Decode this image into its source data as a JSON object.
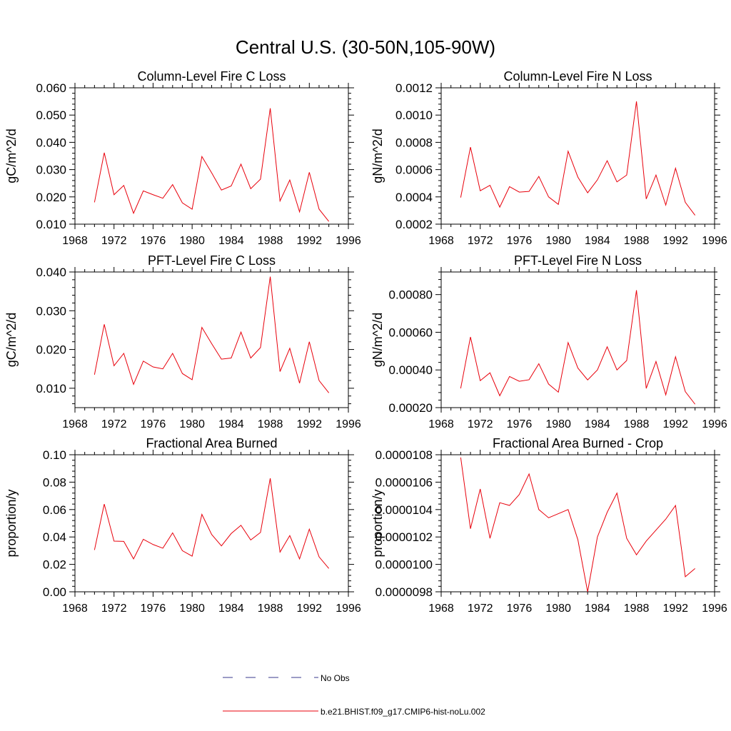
{
  "figure": {
    "title": "Central U.S. (30-50N,105-90W)",
    "legend": {
      "position": "bottom-center",
      "entries": [
        {
          "label": "No Obs",
          "color": "#3a3a8c",
          "style": "dashed"
        },
        {
          "label": "b.e21.BHIST.f09_g17.CMIP6-hist-noLu.002",
          "color": "#e8000b",
          "style": "solid"
        }
      ]
    }
  },
  "chart_data": [
    {
      "type": "line",
      "title": "Column-Level Fire C Loss",
      "ylabel": "gC/m^2/d",
      "xlabel": "",
      "xlim": [
        1968,
        1996
      ],
      "xticks": [
        1968,
        1972,
        1976,
        1980,
        1984,
        1988,
        1992,
        1996
      ],
      "xtick_labels": [
        "1968",
        "1972",
        "1976",
        "1980",
        "1984",
        "1988",
        "1992",
        "1996"
      ],
      "ylim": [
        0.01,
        0.06
      ],
      "yticks": [
        0.01,
        0.02,
        0.03,
        0.04,
        0.05,
        0.06
      ],
      "ytick_labels": [
        "0.010",
        "0.020",
        "0.030",
        "0.040",
        "0.050",
        "0.060"
      ],
      "grid": false,
      "x": [
        1970,
        1971,
        1972,
        1973,
        1974,
        1975,
        1976,
        1977,
        1978,
        1979,
        1980,
        1981,
        1982,
        1983,
        1984,
        1985,
        1986,
        1987,
        1988,
        1989,
        1990,
        1991,
        1992,
        1993,
        1994
      ],
      "series": [
        {
          "name": "b.e21.BHIST.f09_g17.CMIP6-hist-noLu.002",
          "color": "#e8000b",
          "values": [
            0.018,
            0.0362,
            0.0208,
            0.0242,
            0.014,
            0.0222,
            0.0208,
            0.0195,
            0.0245,
            0.0178,
            0.0155,
            0.0348,
            0.0288,
            0.0225,
            0.024,
            0.032,
            0.023,
            0.0265,
            0.0525,
            0.0185,
            0.0262,
            0.0145,
            0.029,
            0.0155,
            0.011
          ]
        }
      ]
    },
    {
      "type": "line",
      "title": "Column-Level Fire N Loss",
      "ylabel": "gN/m^2/d",
      "xlabel": "",
      "xlim": [
        1968,
        1996
      ],
      "xticks": [
        1968,
        1972,
        1976,
        1980,
        1984,
        1988,
        1992,
        1996
      ],
      "xtick_labels": [
        "1968",
        "1972",
        "1976",
        "1980",
        "1984",
        "1988",
        "1992",
        "1996"
      ],
      "ylim": [
        0.0002,
        0.0012
      ],
      "yticks": [
        0.0002,
        0.0004,
        0.0006,
        0.0008,
        0.001,
        0.0012
      ],
      "ytick_labels": [
        "0.0002",
        "0.0004",
        "0.0006",
        "0.0008",
        "0.0010",
        "0.0012"
      ],
      "grid": false,
      "x": [
        1970,
        1971,
        1972,
        1973,
        1974,
        1975,
        1976,
        1977,
        1978,
        1979,
        1980,
        1981,
        1982,
        1983,
        1984,
        1985,
        1986,
        1987,
        1988,
        1989,
        1990,
        1991,
        1992,
        1993,
        1994
      ],
      "series": [
        {
          "name": "b.e21.BHIST.f09_g17.CMIP6-hist-noLu.002",
          "color": "#e8000b",
          "values": [
            0.000395,
            0.000765,
            0.000445,
            0.000485,
            0.000325,
            0.000475,
            0.000435,
            0.00044,
            0.00055,
            0.0004,
            0.000345,
            0.000735,
            0.000545,
            0.00043,
            0.000525,
            0.000665,
            0.00051,
            0.00056,
            0.0011,
            0.000385,
            0.00056,
            0.00034,
            0.00061,
            0.00036,
            0.000265
          ]
        }
      ]
    },
    {
      "type": "line",
      "title": "PFT-Level Fire C Loss",
      "ylabel": "gC/m^2/d",
      "xlabel": "",
      "xlim": [
        1968,
        1996
      ],
      "xticks": [
        1968,
        1972,
        1976,
        1980,
        1984,
        1988,
        1992,
        1996
      ],
      "xtick_labels": [
        "1968",
        "1972",
        "1976",
        "1980",
        "1984",
        "1988",
        "1992",
        "1996"
      ],
      "ylim": [
        0.005,
        0.04
      ],
      "yticks": [
        0.01,
        0.02,
        0.03,
        0.04
      ],
      "ytick_labels": [
        "0.010",
        "0.020",
        "0.030",
        "0.040"
      ],
      "grid": false,
      "x": [
        1970,
        1971,
        1972,
        1973,
        1974,
        1975,
        1976,
        1977,
        1978,
        1979,
        1980,
        1981,
        1982,
        1983,
        1984,
        1985,
        1986,
        1987,
        1988,
        1989,
        1990,
        1991,
        1992,
        1993,
        1994
      ],
      "series": [
        {
          "name": "b.e21.BHIST.f09_g17.CMIP6-hist-noLu.002",
          "color": "#e8000b",
          "values": [
            0.0135,
            0.0265,
            0.0158,
            0.019,
            0.011,
            0.017,
            0.0155,
            0.015,
            0.019,
            0.0138,
            0.0122,
            0.0257,
            0.0215,
            0.0175,
            0.0178,
            0.0245,
            0.0178,
            0.0205,
            0.0388,
            0.0143,
            0.0203,
            0.0113,
            0.022,
            0.012,
            0.0088
          ]
        }
      ]
    },
    {
      "type": "line",
      "title": "PFT-Level Fire N Loss",
      "ylabel": "gN/m^2/d",
      "xlabel": "",
      "xlim": [
        1968,
        1996
      ],
      "xticks": [
        1968,
        1972,
        1976,
        1980,
        1984,
        1988,
        1992,
        1996
      ],
      "xtick_labels": [
        "1968",
        "1972",
        "1976",
        "1980",
        "1984",
        "1988",
        "1992",
        "1996"
      ],
      "ylim": [
        0.0002,
        0.00092
      ],
      "yticks": [
        0.0002,
        0.0004,
        0.0006,
        0.0008
      ],
      "ytick_labels": [
        "0.00020",
        "0.00040",
        "0.00060",
        "0.00080"
      ],
      "grid": false,
      "x": [
        1970,
        1971,
        1972,
        1973,
        1974,
        1975,
        1976,
        1977,
        1978,
        1979,
        1980,
        1981,
        1982,
        1983,
        1984,
        1985,
        1986,
        1987,
        1988,
        1989,
        1990,
        1991,
        1992,
        1993,
        1994
      ],
      "series": [
        {
          "name": "b.e21.BHIST.f09_g17.CMIP6-hist-noLu.002",
          "color": "#e8000b",
          "values": [
            0.000302,
            0.000575,
            0.000343,
            0.000385,
            0.000263,
            0.000365,
            0.00034,
            0.000348,
            0.000433,
            0.000325,
            0.000282,
            0.000545,
            0.00041,
            0.000347,
            0.0004,
            0.000523,
            0.0004,
            0.00045,
            0.000823,
            0.000302,
            0.000445,
            0.000268,
            0.00047,
            0.000285,
            0.000218
          ]
        }
      ]
    },
    {
      "type": "line",
      "title": "Fractional Area Burned",
      "ylabel": "proportion/y",
      "xlabel": "",
      "xlim": [
        1968,
        1996
      ],
      "xticks": [
        1968,
        1972,
        1976,
        1980,
        1984,
        1988,
        1992,
        1996
      ],
      "xtick_labels": [
        "1968",
        "1972",
        "1976",
        "1980",
        "1984",
        "1988",
        "1992",
        "1996"
      ],
      "ylim": [
        0.0,
        0.1
      ],
      "yticks": [
        0.0,
        0.02,
        0.04,
        0.06,
        0.08,
        0.1
      ],
      "ytick_labels": [
        "0.00",
        "0.02",
        "0.04",
        "0.06",
        "0.08",
        "0.10"
      ],
      "grid": false,
      "x": [
        1970,
        1971,
        1972,
        1973,
        1974,
        1975,
        1976,
        1977,
        1978,
        1979,
        1980,
        1981,
        1982,
        1983,
        1984,
        1985,
        1986,
        1987,
        1988,
        1989,
        1990,
        1991,
        1992,
        1993,
        1994
      ],
      "series": [
        {
          "name": "b.e21.BHIST.f09_g17.CMIP6-hist-noLu.002",
          "color": "#e8000b",
          "values": [
            0.0305,
            0.064,
            0.037,
            0.0368,
            0.024,
            0.0383,
            0.0345,
            0.0318,
            0.043,
            0.03,
            0.026,
            0.0565,
            0.0418,
            0.0335,
            0.0425,
            0.0485,
            0.0378,
            0.0433,
            0.0828,
            0.029,
            0.041,
            0.024,
            0.0457,
            0.0255,
            0.017
          ]
        }
      ]
    },
    {
      "type": "line",
      "title": "Fractional Area Burned - Crop",
      "ylabel": "proportion/y",
      "xlabel": "",
      "xlim": [
        1968,
        1996
      ],
      "xticks": [
        1968,
        1972,
        1976,
        1980,
        1984,
        1988,
        1992,
        1996
      ],
      "xtick_labels": [
        "1968",
        "1972",
        "1976",
        "1980",
        "1984",
        "1988",
        "1992",
        "1996"
      ],
      "ylim": [
        9.8e-06,
        1.08e-05
      ],
      "yticks": [
        9.8e-06,
        1e-05,
        1.02e-05,
        1.04e-05,
        1.06e-05,
        1.08e-05
      ],
      "ytick_labels": [
        "0.0000098",
        "0.0000100",
        "0.0000102",
        "0.0000104",
        "0.0000106",
        "0.0000108"
      ],
      "grid": false,
      "x": [
        1970,
        1971,
        1972,
        1973,
        1974,
        1975,
        1976,
        1977,
        1978,
        1979,
        1980,
        1981,
        1982,
        1983,
        1984,
        1985,
        1986,
        1987,
        1988,
        1989,
        1990,
        1991,
        1992,
        1993,
        1994
      ],
      "series": [
        {
          "name": "b.e21.BHIST.f09_g17.CMIP6-hist-noLu.002",
          "color": "#e8000b",
          "values": [
            1.078e-05,
            1.026e-05,
            1.055e-05,
            1.019e-05,
            1.045e-05,
            1.043e-05,
            1.051e-05,
            1.066e-05,
            1.04e-05,
            1.034e-05,
            1.037e-05,
            1.04e-05,
            1.018e-05,
            9.8e-06,
            1.02e-05,
            1.038e-05,
            1.052e-05,
            1.019e-05,
            1.007e-05,
            1.017e-05,
            1.025e-05,
            1.033e-05,
            1.043e-05,
            9.91e-06,
            9.97e-06
          ]
        }
      ]
    }
  ]
}
